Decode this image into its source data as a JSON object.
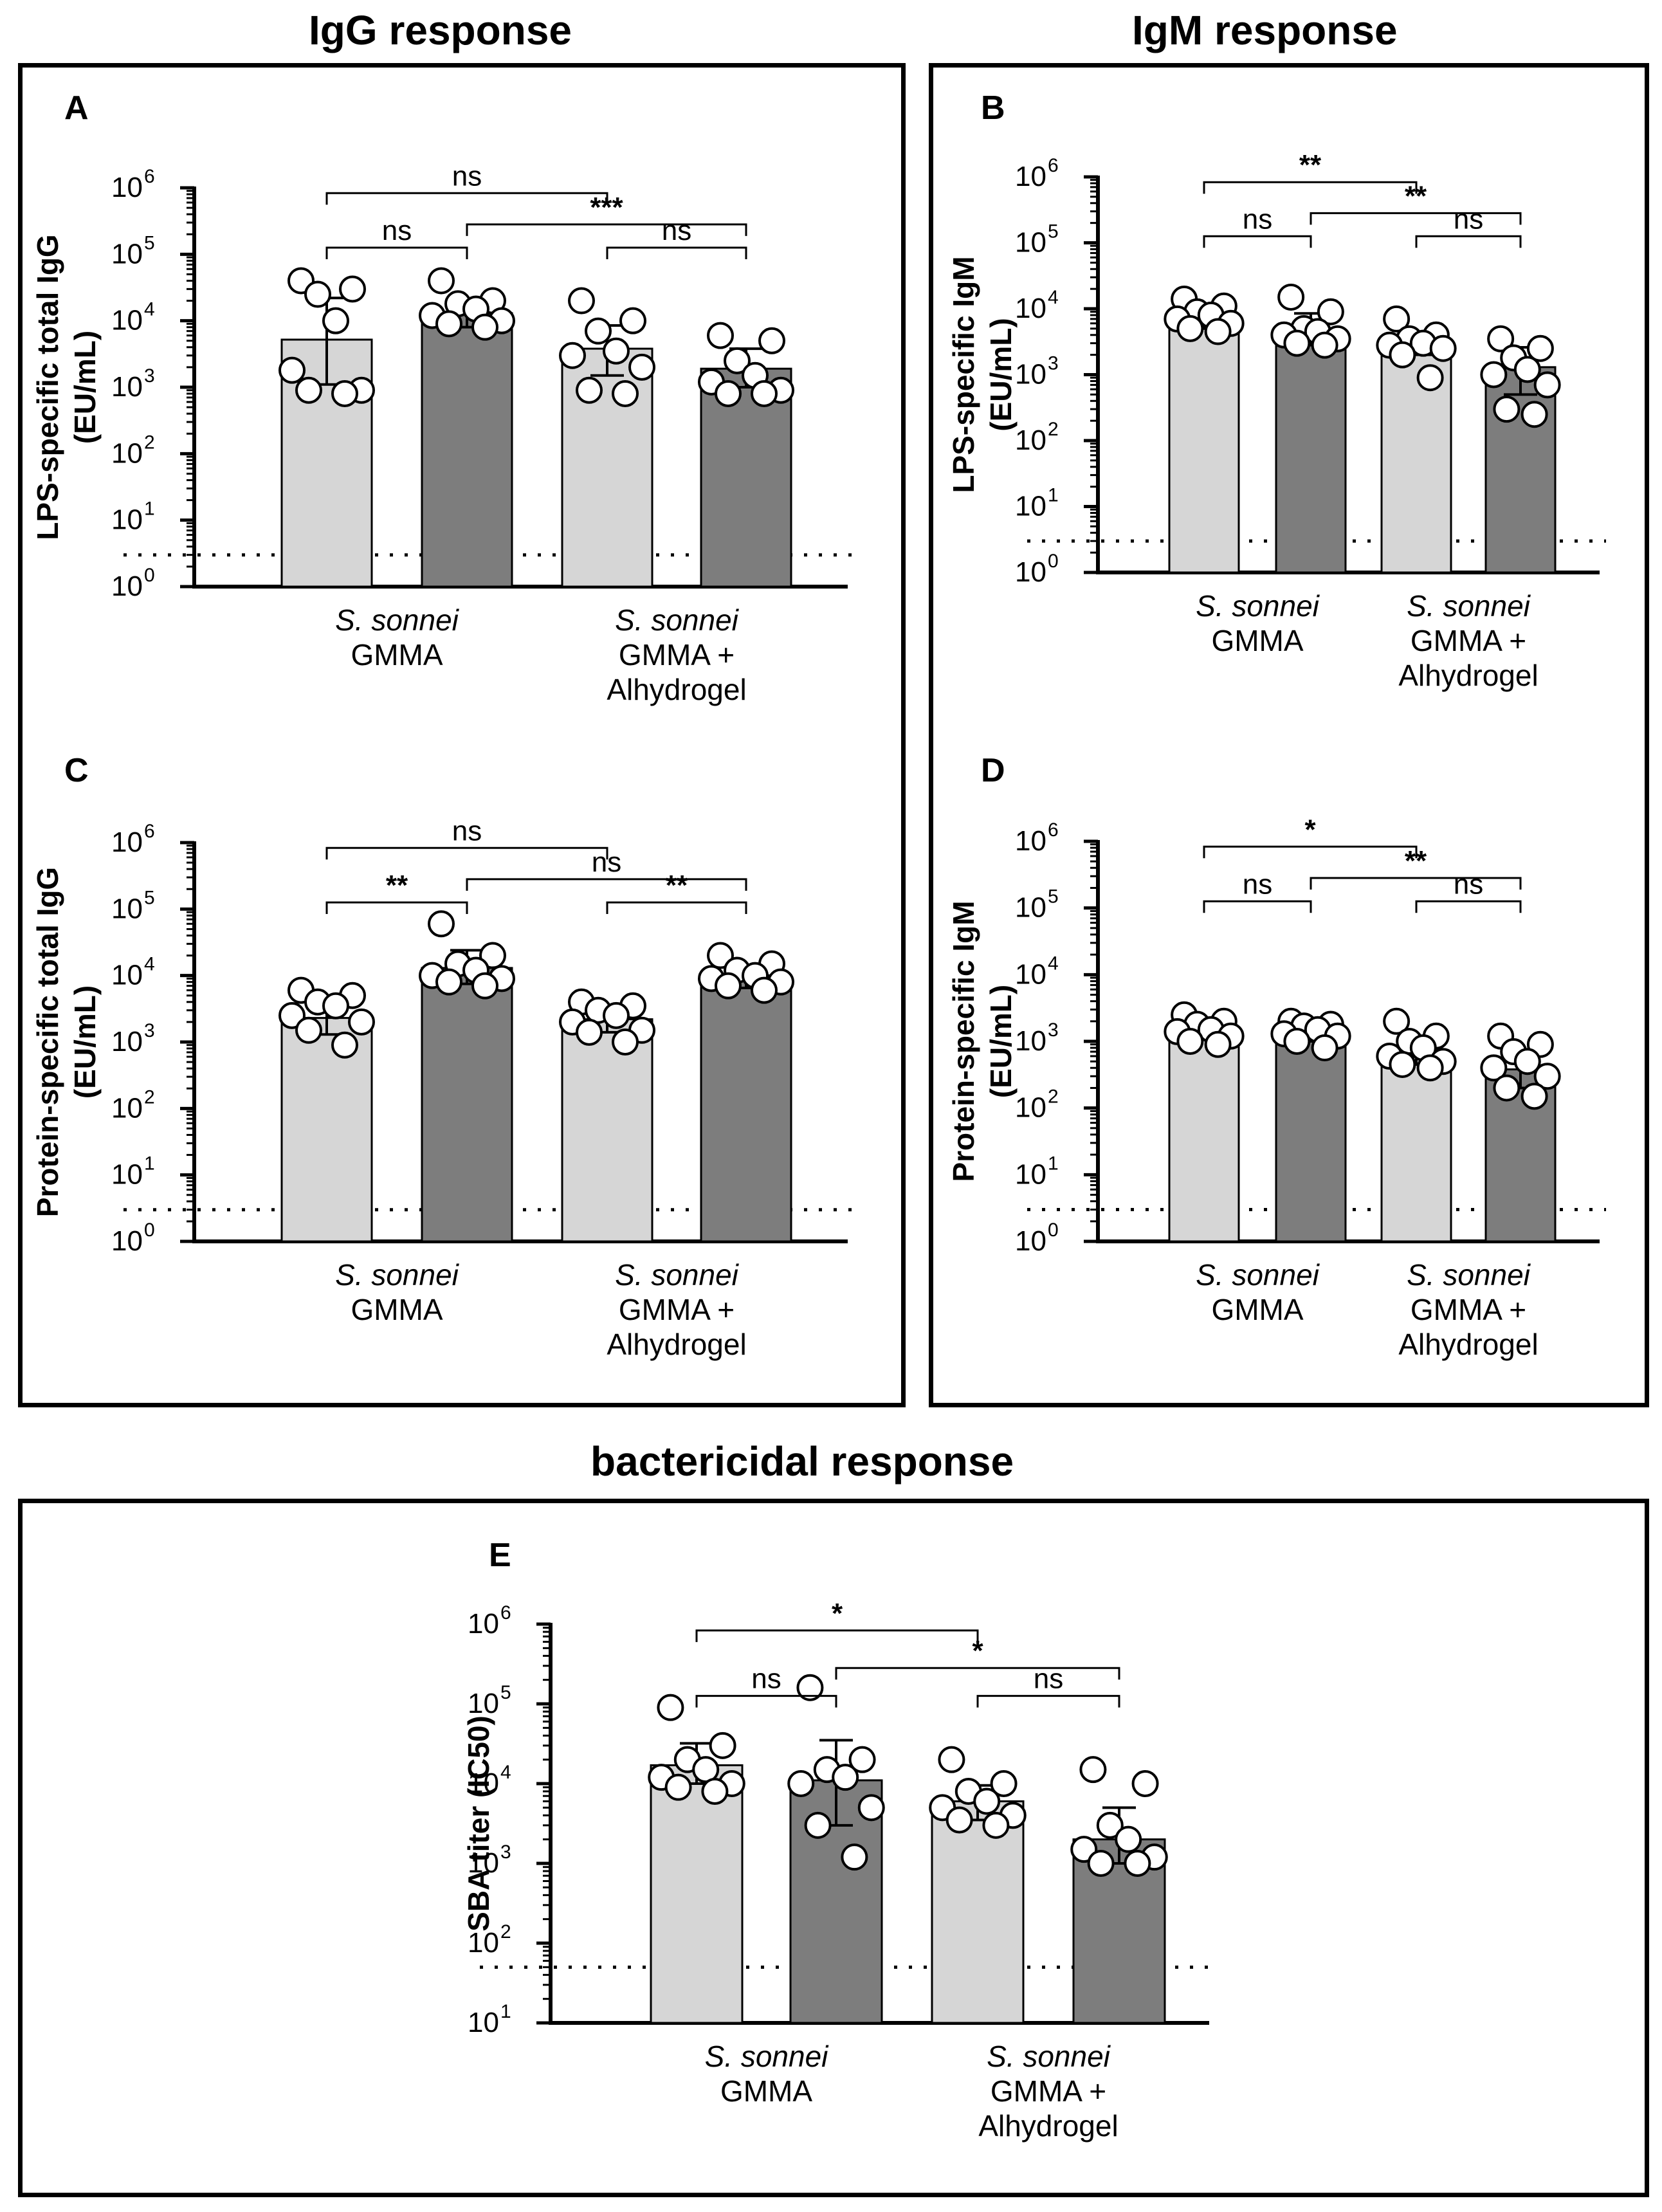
{
  "titles": {
    "igg": "IgG response",
    "igm": "IgM response",
    "bact": "bactericidal response"
  },
  "groups": {
    "group1": {
      "species": "S. sonnei",
      "line2": "GMMA",
      "line3": ""
    },
    "group2": {
      "species": "S. sonnei",
      "line2": "GMMA +",
      "line3": "Alhydrogel"
    }
  },
  "colors": {
    "light_bar": "#d6d6d6",
    "dark_bar": "#7d7d7d"
  },
  "chart_data": [
    {
      "id": "A",
      "type": "bar",
      "panel_label": "A",
      "ylabel_line1": "LPS-specific total IgG",
      "ylabel_line2": "(EU/mL)",
      "yscale": "log",
      "ylim_exp": [
        0,
        6
      ],
      "lod": 3,
      "bars": [
        {
          "value": 5200,
          "err_low": 1100,
          "err_high": 22000,
          "fill": "light",
          "points": [
            40000,
            30000,
            25000,
            10000,
            1800,
            900,
            900,
            800
          ]
        },
        {
          "value": 13000,
          "err_low": 8000,
          "err_high": 20000,
          "fill": "dark",
          "points": [
            40000,
            20000,
            18000,
            15000,
            12000,
            10000,
            9000,
            8000
          ]
        },
        {
          "value": 3800,
          "err_low": 1500,
          "err_high": 8500,
          "fill": "light",
          "points": [
            20000,
            10000,
            7000,
            3500,
            3000,
            2000,
            900,
            800
          ]
        },
        {
          "value": 1900,
          "err_low": 1000,
          "err_high": 3800,
          "fill": "dark",
          "points": [
            6000,
            5000,
            2500,
            1500,
            1200,
            900,
            800,
            800
          ]
        }
      ],
      "brackets": [
        {
          "from": 0,
          "to": 2,
          "level": 2,
          "label": "ns"
        },
        {
          "from": 0,
          "to": 1,
          "level": 0,
          "label": "ns"
        },
        {
          "from": 1,
          "to": 3,
          "level": 1,
          "label": "***"
        },
        {
          "from": 2,
          "to": 3,
          "level": 0,
          "label": "ns"
        }
      ]
    },
    {
      "id": "B",
      "type": "bar",
      "panel_label": "B",
      "ylabel_line1": "LPS-specific IgM",
      "ylabel_line2": "(EU/mL)",
      "yscale": "log",
      "ylim_exp": [
        0,
        6
      ],
      "lod": 3,
      "bars": [
        {
          "value": 7500,
          "err_low": 5000,
          "err_high": 10000,
          "fill": "light",
          "points": [
            14000,
            11000,
            9000,
            8000,
            7000,
            6000,
            5000,
            4500
          ]
        },
        {
          "value": 4500,
          "err_low": 2800,
          "err_high": 8500,
          "fill": "dark",
          "points": [
            15000,
            9000,
            5000,
            4500,
            4000,
            3500,
            3000,
            2800
          ]
        },
        {
          "value": 3200,
          "err_low": 2000,
          "err_high": 4500,
          "fill": "light",
          "points": [
            7000,
            4000,
            3500,
            3000,
            2800,
            2500,
            2000,
            900
          ]
        },
        {
          "value": 1300,
          "err_low": 500,
          "err_high": 2600,
          "fill": "dark",
          "points": [
            3500,
            2500,
            1800,
            1200,
            1000,
            700,
            300,
            250
          ]
        }
      ],
      "brackets": [
        {
          "from": 0,
          "to": 2,
          "level": 2,
          "label": "**"
        },
        {
          "from": 0,
          "to": 1,
          "level": 0,
          "label": "ns"
        },
        {
          "from": 1,
          "to": 3,
          "level": 1,
          "label": "**"
        },
        {
          "from": 2,
          "to": 3,
          "level": 0,
          "label": "ns"
        }
      ]
    },
    {
      "id": "C",
      "type": "bar",
      "panel_label": "C",
      "ylabel_line1": "Protein-specific total IgG",
      "ylabel_line2": "(EU/mL)",
      "yscale": "log",
      "ylim_exp": [
        0,
        6
      ],
      "lod": 3,
      "bars": [
        {
          "value": 2300,
          "err_low": 1300,
          "err_high": 4500,
          "fill": "light",
          "points": [
            6000,
            5000,
            4000,
            3500,
            2500,
            2000,
            1500,
            900
          ]
        },
        {
          "value": 13000,
          "err_low": 7500,
          "err_high": 24000,
          "fill": "dark",
          "points": [
            60000,
            20000,
            15000,
            12000,
            10000,
            9000,
            8000,
            7000
          ]
        },
        {
          "value": 2200,
          "err_low": 1400,
          "err_high": 3200,
          "fill": "light",
          "points": [
            4000,
            3500,
            3000,
            2500,
            2000,
            1500,
            1400,
            1000
          ]
        },
        {
          "value": 9000,
          "err_low": 6500,
          "err_high": 12000,
          "fill": "dark",
          "points": [
            20000,
            15000,
            12000,
            10000,
            9000,
            8000,
            7000,
            6000
          ]
        }
      ],
      "brackets": [
        {
          "from": 0,
          "to": 2,
          "level": 2,
          "label": "ns"
        },
        {
          "from": 0,
          "to": 1,
          "level": 0,
          "label": "**"
        },
        {
          "from": 1,
          "to": 3,
          "level": 1,
          "label": "ns"
        },
        {
          "from": 2,
          "to": 3,
          "level": 0,
          "label": "**"
        }
      ]
    },
    {
      "id": "D",
      "type": "bar",
      "panel_label": "D",
      "ylabel_line1": "Protein-specific IgM",
      "ylabel_line2": "(EU/mL)",
      "yscale": "log",
      "ylim_exp": [
        0,
        6
      ],
      "lod": 3,
      "bars": [
        {
          "value": 1400,
          "err_low": 1100,
          "err_high": 1800,
          "fill": "light",
          "points": [
            2500,
            2000,
            1800,
            1500,
            1400,
            1200,
            1000,
            900
          ]
        },
        {
          "value": 1300,
          "err_low": 1000,
          "err_high": 1700,
          "fill": "dark",
          "points": [
            2000,
            1800,
            1700,
            1500,
            1300,
            1200,
            1000,
            800
          ]
        },
        {
          "value": 650,
          "err_low": 450,
          "err_high": 1000,
          "fill": "light",
          "points": [
            2000,
            1200,
            1000,
            800,
            600,
            500,
            450,
            400
          ]
        },
        {
          "value": 380,
          "err_low": 200,
          "err_high": 650,
          "fill": "dark",
          "points": [
            1200,
            900,
            700,
            500,
            400,
            300,
            200,
            150
          ]
        }
      ],
      "brackets": [
        {
          "from": 0,
          "to": 2,
          "level": 2,
          "label": "*"
        },
        {
          "from": 0,
          "to": 1,
          "level": 0,
          "label": "ns"
        },
        {
          "from": 1,
          "to": 3,
          "level": 1,
          "label": "**"
        },
        {
          "from": 2,
          "to": 3,
          "level": 0,
          "label": "ns"
        }
      ]
    },
    {
      "id": "E",
      "type": "bar",
      "panel_label": "E",
      "ylabel_line1": "SBA titer (IC50)",
      "ylabel_line2": "",
      "yscale": "log",
      "ylim_exp": [
        1,
        6
      ],
      "lod": 50,
      "bars": [
        {
          "value": 17000,
          "err_low": 10000,
          "err_high": 32000,
          "fill": "light",
          "points": [
            90000,
            30000,
            20000,
            15000,
            12000,
            10000,
            9000,
            8000
          ]
        },
        {
          "value": 11000,
          "err_low": 3000,
          "err_high": 35000,
          "fill": "dark",
          "points": [
            160000,
            20000,
            15000,
            12000,
            10000,
            5000,
            3000,
            1200
          ]
        },
        {
          "value": 6000,
          "err_low": 3500,
          "err_high": 9500,
          "fill": "light",
          "points": [
            20000,
            10000,
            8000,
            6000,
            5000,
            4000,
            3500,
            3000
          ]
        },
        {
          "value": 2000,
          "err_low": 1000,
          "err_high": 5000,
          "fill": "dark",
          "points": [
            15000,
            10000,
            3000,
            2000,
            1500,
            1200,
            1000,
            1000
          ]
        }
      ],
      "brackets": [
        {
          "from": 0,
          "to": 2,
          "level": 2,
          "label": "*"
        },
        {
          "from": 0,
          "to": 1,
          "level": 0,
          "label": "ns"
        },
        {
          "from": 1,
          "to": 3,
          "level": 1,
          "label": "*"
        },
        {
          "from": 2,
          "to": 3,
          "level": 0,
          "label": "ns"
        }
      ]
    }
  ]
}
